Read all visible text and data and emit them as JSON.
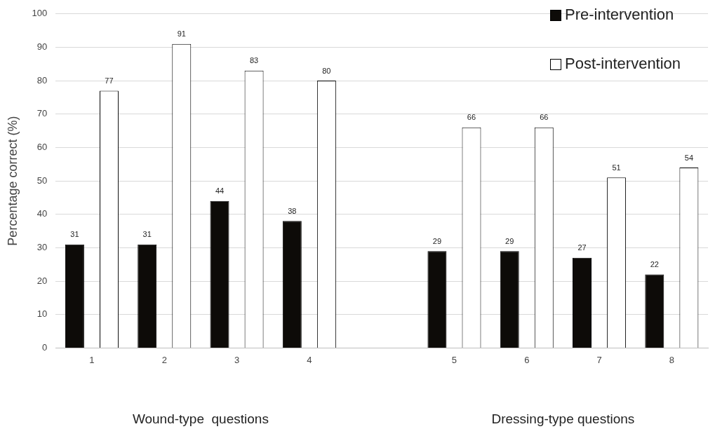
{
  "chart_data": {
    "type": "bar",
    "ylabel": "Percentage correct (%)",
    "categories": [
      "1",
      "2",
      "3",
      "4",
      null,
      "5",
      "6",
      "7",
      "8"
    ],
    "series": [
      {
        "name": "Pre-intervention",
        "color": "#0d0b08",
        "values": [
          31,
          31,
          44,
          38,
          null,
          29,
          29,
          27,
          22
        ]
      },
      {
        "name": "Post-intervention",
        "color": "#ffffff",
        "values": [
          77,
          91,
          83,
          80,
          null,
          66,
          66,
          51,
          54
        ]
      }
    ],
    "ylim": [
      0,
      100
    ],
    "yticks": [
      0,
      10,
      20,
      30,
      40,
      50,
      60,
      70,
      80,
      90,
      100
    ],
    "grid": "y",
    "legend": "top right",
    "data_labels": true,
    "annotations": [
      "Wound-type  questions",
      "Dressing-type questions"
    ]
  }
}
